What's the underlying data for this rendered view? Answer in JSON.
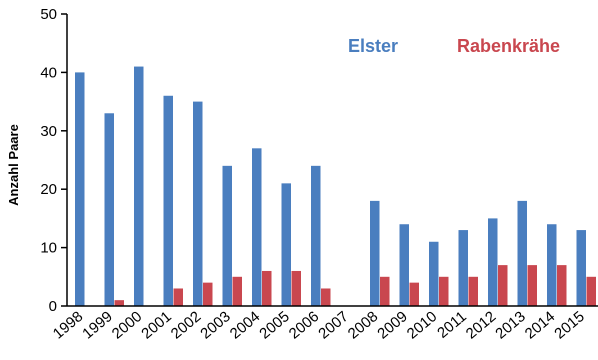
{
  "chart_data": {
    "type": "bar",
    "title": "",
    "xlabel": "",
    "ylabel": "Anzahl Paare",
    "ylim": [
      0,
      50
    ],
    "yticks": [
      0,
      10,
      20,
      30,
      40,
      50
    ],
    "grid": false,
    "legend_position": "top-right",
    "categories": [
      "1998",
      "1999",
      "2000",
      "2001",
      "2002",
      "2003",
      "2004",
      "2005",
      "2006",
      "2007",
      "2008",
      "2009",
      "2010",
      "2011",
      "2012",
      "2013",
      "2014",
      "2015"
    ],
    "series": [
      {
        "name": "Elster",
        "color": "#4a7ebf",
        "values": [
          40,
          33,
          41,
          36,
          35,
          24,
          27,
          21,
          24,
          0,
          18,
          14,
          11,
          13,
          15,
          18,
          14,
          13
        ]
      },
      {
        "name": "Rabenkrähe",
        "color": "#c9474f",
        "values": [
          0,
          1,
          0,
          3,
          4,
          5,
          6,
          6,
          3,
          0,
          5,
          4,
          5,
          5,
          7,
          7,
          7,
          5
        ]
      }
    ]
  }
}
